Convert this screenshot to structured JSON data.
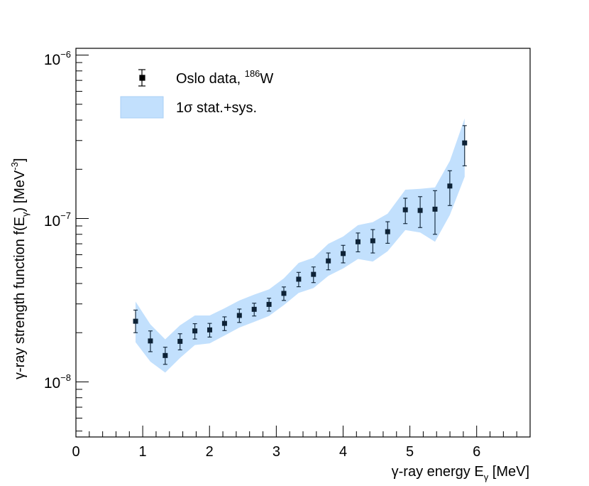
{
  "chart_data": {
    "type": "scatter",
    "title": "",
    "xlabel": {
      "main": "γ-ray energy E",
      "sub": "γ",
      "unit": " [MeV]"
    },
    "ylabel": {
      "main": "γ-ray strength function f(E",
      "sub": "γ",
      "mid": ") [MeV",
      "sup": "-3",
      "end": "]"
    },
    "xlim": [
      0,
      6.8
    ],
    "ylim": [
      4.6e-09,
      1.1e-06
    ],
    "yscale": "log",
    "x_ticks": [
      "0",
      "1",
      "2",
      "3",
      "4",
      "5",
      "6"
    ],
    "y_ticks": [
      {
        "base": "10",
        "exp": "−8",
        "value": 1e-08
      },
      {
        "base": "10",
        "exp": "−7",
        "value": 1e-07
      },
      {
        "base": "10",
        "exp": "−6",
        "value": 1e-06
      }
    ],
    "legend": {
      "position": "top-left",
      "data_label": "Oslo data, ",
      "data_sup": "186",
      "data_nucleus": "W",
      "band_label": "1σ stat.+sys."
    },
    "colors": {
      "band": "#c2e0fd",
      "band_edge": "#a9cff5",
      "marker": "#0d2236",
      "axis": "#000000"
    },
    "series": [
      {
        "name": "Oslo data, 186W",
        "type": "scatter",
        "x": [
          0.893,
          1.115,
          1.337,
          1.559,
          1.781,
          2.003,
          2.225,
          2.447,
          2.669,
          2.891,
          3.113,
          3.335,
          3.557,
          3.779,
          4.001,
          4.223,
          4.445,
          4.667,
          4.932,
          5.154,
          5.376,
          5.598,
          5.82
        ],
        "y": [
          2.35e-08,
          1.78e-08,
          1.45e-08,
          1.77e-08,
          2.05e-08,
          2.08e-08,
          2.28e-08,
          2.55e-08,
          2.78e-08,
          2.98e-08,
          3.48e-08,
          4.25e-08,
          4.55e-08,
          5.5e-08,
          6.1e-08,
          7.2e-08,
          7.3e-08,
          8.3e-08,
          1.13e-07,
          1.12e-07,
          1.14e-07,
          1.58e-07,
          2.9e-07
        ],
        "y_low": [
          2e-08,
          1.53e-08,
          1.28e-08,
          1.57e-08,
          1.83e-08,
          1.88e-08,
          2.06e-08,
          2.31e-08,
          2.53e-08,
          2.71e-08,
          3.15e-08,
          3.82e-08,
          4.05e-08,
          4.85e-08,
          5.35e-08,
          6.25e-08,
          6.15e-08,
          7.05e-08,
          9.3e-08,
          8.8e-08,
          8e-08,
          1.2e-07,
          2.1e-07
        ],
        "y_high": [
          2.75e-08,
          2.05e-08,
          1.63e-08,
          1.97e-08,
          2.27e-08,
          2.28e-08,
          2.5e-08,
          2.79e-08,
          3.03e-08,
          3.25e-08,
          3.81e-08,
          4.68e-08,
          5.05e-08,
          6.15e-08,
          6.85e-08,
          8.15e-08,
          8.55e-08,
          9.55e-08,
          1.33e-07,
          1.36e-07,
          1.48e-07,
          1.96e-07,
          3.7e-07
        ]
      },
      {
        "name": "1σ stat.+sys.",
        "type": "band",
        "x": [
          0.893,
          1.115,
          1.337,
          1.559,
          1.781,
          2.003,
          2.225,
          2.447,
          2.669,
          2.891,
          3.113,
          3.335,
          3.557,
          3.779,
          4.001,
          4.223,
          4.445,
          4.667,
          4.932,
          5.154,
          5.376,
          5.598,
          5.82
        ],
        "y_low": [
          1.75e-08,
          1.33e-08,
          1.14e-08,
          1.4e-08,
          1.68e-08,
          1.72e-08,
          1.92e-08,
          2.15e-08,
          2.33e-08,
          2.53e-08,
          2.95e-08,
          3.5e-08,
          3.75e-08,
          4.45e-08,
          4.95e-08,
          5.65e-08,
          5.45e-08,
          6.3e-08,
          8.5e-08,
          8.2e-08,
          7.2e-08,
          1.05e-07,
          1.8e-07
        ],
        "y_high": [
          3.1e-08,
          2.25e-08,
          1.82e-08,
          2.22e-08,
          2.55e-08,
          2.55e-08,
          2.82e-08,
          3.15e-08,
          3.42e-08,
          3.68e-08,
          4.3e-08,
          5.35e-08,
          5.75e-08,
          7e-08,
          7.75e-08,
          9.1e-08,
          9.5e-08,
          1.07e-07,
          1.5e-07,
          1.52e-07,
          1.55e-07,
          2.25e-07,
          4.1e-07
        ]
      }
    ]
  }
}
